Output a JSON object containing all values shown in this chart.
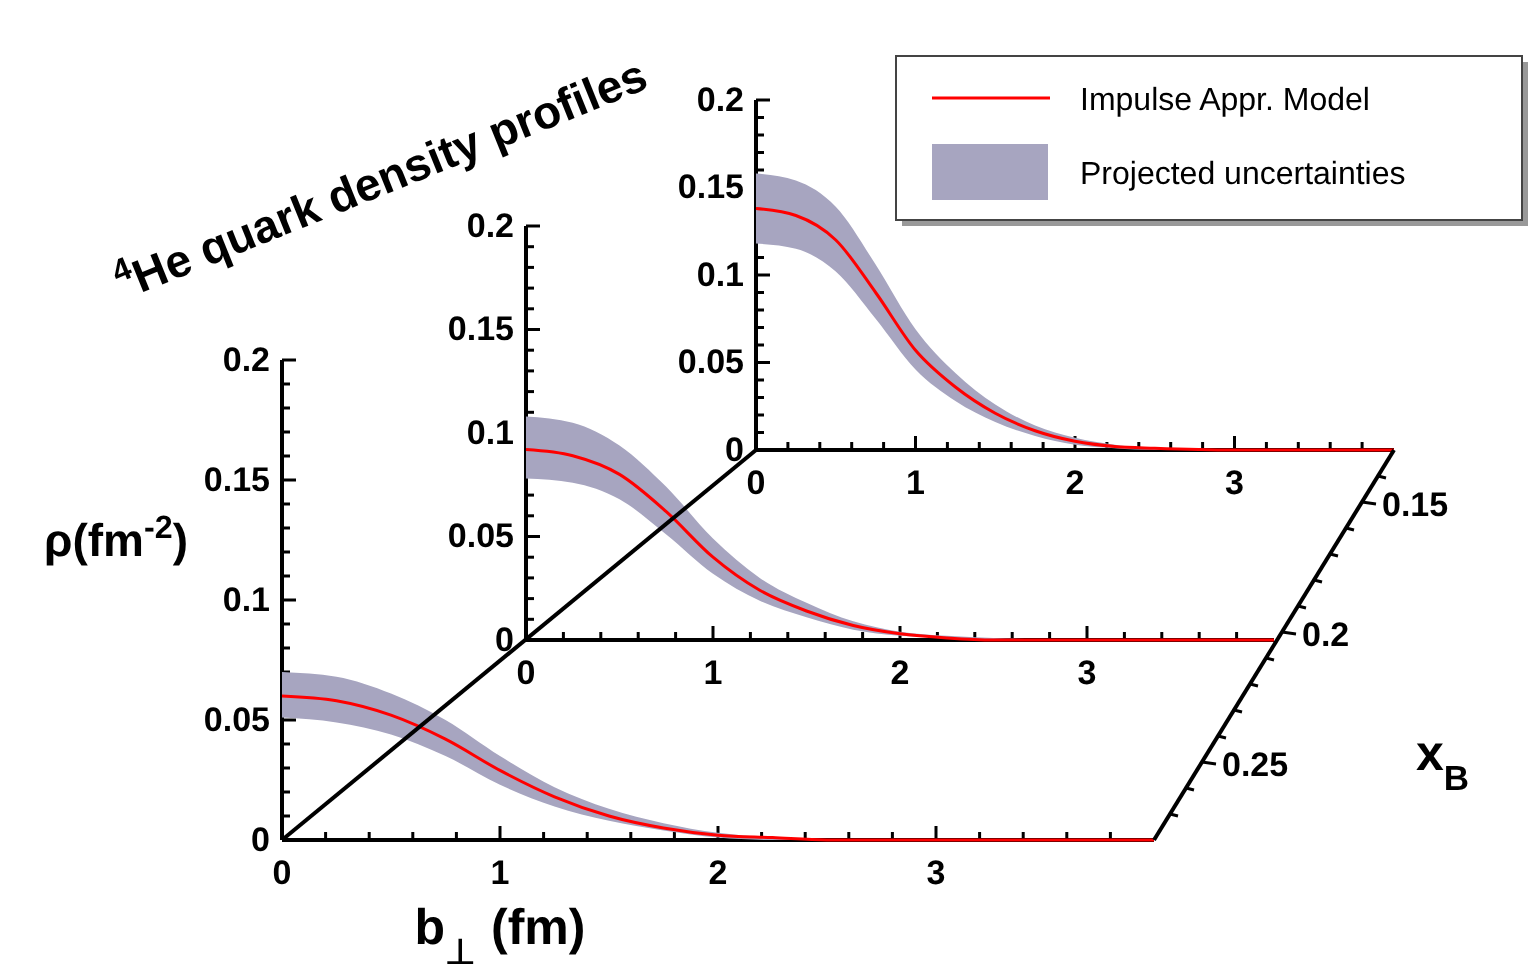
{
  "chart_data": [
    {
      "type": "line",
      "title": "$^{4}$He quark density profiles",
      "legend": "top right",
      "annotations": [
        "Projected uncertainties"
      ],
      "xlim": [
        0,
        4
      ],
      "xticks": [
        0,
        {
          "value": 0.2,
          "label": null
        },
        {
          "value": 0.4,
          "label": null
        },
        {
          "value": 0.6,
          "label": null
        },
        {
          "value": 0.8,
          "label": null
        },
        1,
        {
          "value": 1.2,
          "label": null
        },
        {
          "value": 1.4,
          "label": null
        },
        {
          "value": 1.6,
          "label": null
        },
        {
          "value": 1.8,
          "label": null
        },
        2,
        {
          "value": 2.2,
          "label": null
        },
        {
          "value": 2.4,
          "label": null
        },
        {
          "value": 2.6,
          "label": null
        },
        {
          "value": 2.8,
          "label": null
        },
        3,
        {
          "value": 3.2,
          "label": null
        },
        {
          "value": 3.4,
          "label": null
        },
        {
          "value": 3.6,
          "label": null
        },
        {
          "value": 3.8,
          "label": null
        }
      ],
      "ylim": [
        0,
        0.2
      ],
      "yticks": [
        0,
        {
          "value": 0.01,
          "label": null
        },
        {
          "value": 0.02,
          "label": null
        },
        {
          "value": 0.03,
          "label": null
        },
        {
          "value": 0.04,
          "label": null
        },
        0.05,
        {
          "value": 0.06,
          "label": null
        },
        {
          "value": 0.07,
          "label": null
        },
        {
          "value": 0.08,
          "label": null
        },
        {
          "value": 0.09,
          "label": null
        },
        0.1,
        {
          "value": 0.11,
          "label": null
        },
        {
          "value": 0.12,
          "label": null
        },
        {
          "value": 0.13,
          "label": null
        },
        {
          "value": 0.14,
          "label": null
        },
        0.15,
        {
          "value": 0.16,
          "label": null
        },
        {
          "value": 0.17,
          "label": null
        },
        {
          "value": 0.18,
          "label": null
        },
        {
          "value": 0.19,
          "label": null
        },
        0.2
      ],
      "x": [
        0,
        0.25,
        0.5,
        0.75,
        1,
        1.25,
        1.5,
        1.75,
        2,
        2.25,
        2.5,
        3,
        3.5,
        4
      ],
      "series": [
        {
          "name": "Impulse Appr. Model",
          "color": "#ff0000",
          "values": [
            0.138,
            0.134,
            0.12,
            0.09,
            0.057,
            0.036,
            0.021,
            0.011,
            0.005,
            0.002,
            0.001,
            0,
            0,
            0
          ],
          "upper": [
            0.158,
            0.154,
            0.139,
            0.106,
            0.069,
            0.044,
            0.026,
            0.014,
            0.007,
            0.003,
            0.001,
            0,
            0,
            0
          ],
          "lower": [
            0.118,
            0.115,
            0.102,
            0.075,
            0.046,
            0.028,
            0.016,
            0.008,
            0.003,
            0.001,
            0,
            0,
            0,
            0
          ]
        }
      ]
    },
    {
      "type": "line",
      "xlim": [
        0,
        4
      ],
      "xticks": [
        0,
        {
          "value": 0.2,
          "label": null
        },
        {
          "value": 0.4,
          "label": null
        },
        {
          "value": 0.6,
          "label": null
        },
        {
          "value": 0.8,
          "label": null
        },
        1,
        {
          "value": 1.2,
          "label": null
        },
        {
          "value": 1.4,
          "label": null
        },
        {
          "value": 1.6,
          "label": null
        },
        {
          "value": 1.8,
          "label": null
        },
        2,
        {
          "value": 2.2,
          "label": null
        },
        {
          "value": 2.4,
          "label": null
        },
        {
          "value": 2.6,
          "label": null
        },
        {
          "value": 2.8,
          "label": null
        },
        3,
        {
          "value": 3.2,
          "label": null
        },
        {
          "value": 3.4,
          "label": null
        },
        {
          "value": 3.6,
          "label": null
        },
        {
          "value": 3.8,
          "label": null
        }
      ],
      "ylim": [
        0,
        0.2
      ],
      "yticks": [
        0,
        {
          "value": 0.01,
          "label": null
        },
        {
          "value": 0.02,
          "label": null
        },
        {
          "value": 0.03,
          "label": null
        },
        {
          "value": 0.04,
          "label": null
        },
        0.05,
        {
          "value": 0.06,
          "label": null
        },
        {
          "value": 0.07,
          "label": null
        },
        {
          "value": 0.08,
          "label": null
        },
        {
          "value": 0.09,
          "label": null
        },
        0.1,
        {
          "value": 0.11,
          "label": null
        },
        {
          "value": 0.12,
          "label": null
        },
        {
          "value": 0.13,
          "label": null
        },
        {
          "value": 0.14,
          "label": null
        },
        0.15,
        {
          "value": 0.16,
          "label": null
        },
        {
          "value": 0.17,
          "label": null
        },
        {
          "value": 0.18,
          "label": null
        },
        {
          "value": 0.19,
          "label": null
        },
        0.2
      ],
      "x": [
        0,
        0.25,
        0.5,
        0.75,
        1,
        1.25,
        1.5,
        1.75,
        2,
        2.25,
        2.5,
        3,
        3.5,
        4
      ],
      "series": [
        {
          "color": "#ff0000",
          "values": [
            0.092,
            0.089,
            0.08,
            0.062,
            0.04,
            0.024,
            0.014,
            0.007,
            0.003,
            0.001,
            0,
            0,
            0,
            0
          ],
          "upper": [
            0.108,
            0.105,
            0.094,
            0.074,
            0.049,
            0.03,
            0.018,
            0.009,
            0.004,
            0.002,
            0.001,
            0,
            0,
            0
          ],
          "lower": [
            0.078,
            0.076,
            0.068,
            0.051,
            0.032,
            0.019,
            0.011,
            0.005,
            0.002,
            0.001,
            0,
            0,
            0,
            0
          ]
        }
      ]
    },
    {
      "type": "line",
      "xlabel": "b$_{⊥}$ (fm)",
      "ylabel": "ρ(fm$^{-2}$)",
      "xlim": [
        0,
        4
      ],
      "xticks": [
        0,
        {
          "value": 0.2,
          "label": null
        },
        {
          "value": 0.4,
          "label": null
        },
        {
          "value": 0.6,
          "label": null
        },
        {
          "value": 0.8,
          "label": null
        },
        1,
        {
          "value": 1.2,
          "label": null
        },
        {
          "value": 1.4,
          "label": null
        },
        {
          "value": 1.6,
          "label": null
        },
        {
          "value": 1.8,
          "label": null
        },
        2,
        {
          "value": 2.2,
          "label": null
        },
        {
          "value": 2.4,
          "label": null
        },
        {
          "value": 2.6,
          "label": null
        },
        {
          "value": 2.8,
          "label": null
        },
        3,
        {
          "value": 3.2,
          "label": null
        },
        {
          "value": 3.4,
          "label": null
        },
        {
          "value": 3.6,
          "label": null
        },
        {
          "value": 3.8,
          "label": null
        }
      ],
      "ylim": [
        0,
        0.2
      ],
      "yticks": [
        0,
        {
          "value": 0.01,
          "label": null
        },
        {
          "value": 0.02,
          "label": null
        },
        {
          "value": 0.03,
          "label": null
        },
        {
          "value": 0.04,
          "label": null
        },
        0.05,
        {
          "value": 0.06,
          "label": null
        },
        {
          "value": 0.07,
          "label": null
        },
        {
          "value": 0.08,
          "label": null
        },
        {
          "value": 0.09,
          "label": null
        },
        0.1,
        {
          "value": 0.11,
          "label": null
        },
        {
          "value": 0.12,
          "label": null
        },
        {
          "value": 0.13,
          "label": null
        },
        {
          "value": 0.14,
          "label": null
        },
        0.15,
        {
          "value": 0.16,
          "label": null
        },
        {
          "value": 0.17,
          "label": null
        },
        {
          "value": 0.18,
          "label": null
        },
        {
          "value": 0.19,
          "label": null
        },
        0.2
      ],
      "x": [
        0,
        0.25,
        0.5,
        0.75,
        1,
        1.25,
        1.5,
        1.75,
        2,
        2.25,
        2.5,
        3,
        3.5,
        4
      ],
      "series": [
        {
          "color": "#ff0000",
          "values": [
            0.06,
            0.058,
            0.052,
            0.042,
            0.029,
            0.018,
            0.01,
            0.005,
            0.002,
            0.001,
            0,
            0,
            0,
            0
          ],
          "upper": [
            0.07,
            0.068,
            0.061,
            0.05,
            0.035,
            0.022,
            0.013,
            0.007,
            0.003,
            0.001,
            0,
            0,
            0,
            0
          ],
          "lower": [
            0.051,
            0.049,
            0.044,
            0.035,
            0.023,
            0.014,
            0.008,
            0.004,
            0.001,
            0,
            0,
            0,
            0,
            0
          ]
        }
      ]
    },
    {
      "type": "other",
      "ylabel": "x$_{B}$",
      "annotations": [
        "0.15",
        "0.2",
        "0.25"
      ]
    }
  ]
}
